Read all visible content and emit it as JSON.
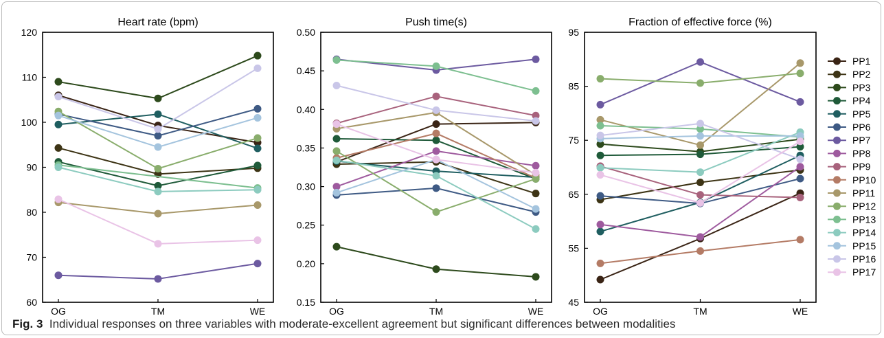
{
  "caption": {
    "label": "Fig. 3",
    "text": "Individual responses on three variables with moderate-excellent agreement but significant differences between modalities"
  },
  "colors": [
    "#3a2415",
    "#3d3415",
    "#2d4a1c",
    "#1f5a39",
    "#1f5e60",
    "#3e5a84",
    "#6c5aa0",
    "#9e5a9e",
    "#a8627c",
    "#b47b65",
    "#a8986a",
    "#89ad6c",
    "#7dbf90",
    "#8ccbbf",
    "#a4c4de",
    "#c9c6e8",
    "#e9c3e6"
  ],
  "chart_data": [
    {
      "type": "line",
      "title": "Heart rate (bpm)",
      "categories": [
        "OG",
        "TM",
        "WE"
      ],
      "ylim": [
        60,
        120
      ],
      "yticks": [
        "60",
        "70",
        "80",
        "90",
        "100",
        "110",
        "120"
      ],
      "series": [
        {
          "name": "PP1",
          "values": [
            106,
            99.3,
            95.5
          ]
        },
        {
          "name": "PP2",
          "values": [
            94.3,
            88.5,
            89.8
          ]
        },
        {
          "name": "PP3",
          "values": [
            109,
            105.3,
            114.8
          ]
        },
        {
          "name": "PP4",
          "values": [
            91.2,
            85.9,
            90.4
          ]
        },
        {
          "name": "PP5",
          "values": [
            99.5,
            101.8,
            94.2
          ]
        },
        {
          "name": "PP6",
          "values": [
            101.8,
            97,
            103
          ]
        },
        {
          "name": "PP7",
          "values": [
            66,
            65.2,
            68.6
          ]
        },
        {
          "name": "PP8",
          "values": [
            null,
            null,
            null
          ]
        },
        {
          "name": "PP9",
          "values": [
            null,
            null,
            null
          ]
        },
        {
          "name": "PP10",
          "values": [
            null,
            null,
            null
          ]
        },
        {
          "name": "PP11",
          "values": [
            82.2,
            79.7,
            81.6
          ]
        },
        {
          "name": "PP12",
          "values": [
            102.4,
            89.7,
            96.5
          ]
        },
        {
          "name": "PP13",
          "values": [
            90.5,
            null,
            85.4
          ]
        },
        {
          "name": "PP14",
          "values": [
            90,
            84.6,
            85
          ]
        },
        {
          "name": "PP15",
          "values": [
            101.5,
            94.5,
            101
          ]
        },
        {
          "name": "PP16",
          "values": [
            105.7,
            98.5,
            112
          ]
        },
        {
          "name": "PP17",
          "values": [
            82.9,
            73,
            73.8
          ]
        }
      ]
    },
    {
      "type": "line",
      "title": "Push time(s)",
      "categories": [
        "OG",
        "TM",
        "WE"
      ],
      "ylim": [
        0.15,
        0.5
      ],
      "yticks": [
        "0.15",
        "0.20",
        "0.25",
        "0.30",
        "0.35",
        "0.40",
        "0.45",
        "0.50"
      ],
      "series": [
        {
          "name": "PP1",
          "values": [
            0.332,
            0.381,
            0.383
          ]
        },
        {
          "name": "PP2",
          "values": [
            0.329,
            0.332,
            0.291
          ]
        },
        {
          "name": "PP3",
          "values": [
            0.222,
            0.193,
            0.183
          ]
        },
        {
          "name": "PP4",
          "values": [
            0.362,
            0.36,
            0.31
          ]
        },
        {
          "name": "PP5",
          "values": [
            0.333,
            0.32,
            0.312
          ]
        },
        {
          "name": "PP6",
          "values": [
            0.289,
            0.298,
            0.267
          ]
        },
        {
          "name": "PP7",
          "values": [
            0.465,
            0.451,
            0.465
          ]
        },
        {
          "name": "PP8",
          "values": [
            0.3,
            0.346,
            0.327
          ]
        },
        {
          "name": "PP9",
          "values": [
            0.382,
            0.417,
            0.392
          ]
        },
        {
          "name": "PP10",
          "values": [
            0.337,
            0.369,
            0.311
          ]
        },
        {
          "name": "PP11",
          "values": [
            0.375,
            0.396,
            0.315
          ]
        },
        {
          "name": "PP12",
          "values": [
            0.346,
            0.267,
            0.31
          ]
        },
        {
          "name": "PP13",
          "values": [
            0.464,
            0.456,
            0.424
          ]
        },
        {
          "name": "PP14",
          "values": [
            0.334,
            0.314,
            0.245
          ]
        },
        {
          "name": "PP15",
          "values": [
            0.292,
            0.335,
            0.271
          ]
        },
        {
          "name": "PP16",
          "values": [
            0.431,
            0.399,
            0.385
          ]
        },
        {
          "name": "PP17",
          "values": [
            0.381,
            0.335,
            0.318
          ]
        }
      ]
    },
    {
      "type": "line",
      "title": "Fraction of effective force (%)",
      "categories": [
        "OG",
        "TM",
        "WE"
      ],
      "ylim": [
        45,
        95
      ],
      "yticks": [
        "45",
        "55",
        "65",
        "75",
        "85",
        "95"
      ],
      "series": [
        {
          "name": "PP1",
          "values": [
            49.2,
            56.8,
            65.2
          ]
        },
        {
          "name": "PP2",
          "values": [
            64,
            67.2,
            69.5
          ]
        },
        {
          "name": "PP3",
          "values": [
            74.3,
            72.9,
            75.2
          ]
        },
        {
          "name": "PP4",
          "values": [
            72.2,
            72.4,
            73.8
          ]
        },
        {
          "name": "PP5",
          "values": [
            58.1,
            63.5,
            72.2
          ]
        },
        {
          "name": "PP6",
          "values": [
            64.7,
            63.3,
            67.9
          ]
        },
        {
          "name": "PP7",
          "values": [
            81.6,
            89.5,
            82.1
          ]
        },
        {
          "name": "PP8",
          "values": [
            59.4,
            57.1,
            70.1
          ]
        },
        {
          "name": "PP9",
          "values": [
            70.2,
            64.9,
            64.4
          ]
        },
        {
          "name": "PP10",
          "values": [
            52.2,
            54.5,
            56.6
          ]
        },
        {
          "name": "PP11",
          "values": [
            78.8,
            74.1,
            89.3
          ]
        },
        {
          "name": "PP12",
          "values": [
            86.4,
            85.6,
            87.4
          ]
        },
        {
          "name": "PP13",
          "values": [
            77.7,
            77.1,
            75.6
          ]
        },
        {
          "name": "PP14",
          "values": [
            69.9,
            69.1,
            76.5
          ]
        },
        {
          "name": "PP15",
          "values": [
            75.3,
            75.8,
            75.8
          ]
        },
        {
          "name": "PP16",
          "values": [
            75.9,
            78.1,
            71.5
          ]
        },
        {
          "name": "PP17",
          "values": [
            68.6,
            63.4,
            74.8
          ]
        }
      ]
    }
  ],
  "legend": {
    "placement": "right",
    "items": [
      "PP1",
      "PP2",
      "PP3",
      "PP4",
      "PP5",
      "PP6",
      "PP7",
      "PP8",
      "PP9",
      "PP10",
      "PP11",
      "PP12",
      "PP13",
      "PP14",
      "PP15",
      "PP16",
      "PP17"
    ]
  }
}
